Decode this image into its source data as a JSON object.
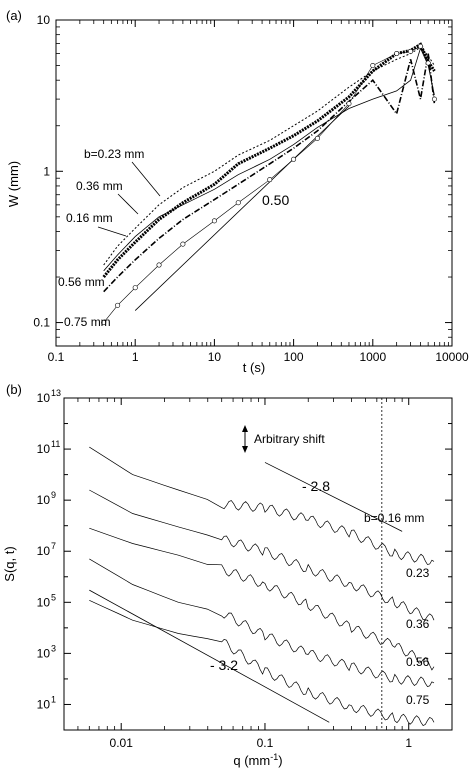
{
  "chart_data": [
    {
      "type": "line",
      "panel": "(a)",
      "xlabel": "t (s)",
      "ylabel": "W (mm)",
      "xscale": "log",
      "yscale": "log",
      "xlim": [
        0.1,
        10000
      ],
      "ylim": [
        0.07,
        10
      ],
      "xticks": [
        "0.1",
        "1",
        "10",
        "100",
        "1000",
        "10000"
      ],
      "yticks": [
        "0.1",
        "1",
        "10"
      ],
      "slope_label": "0.50",
      "series": [
        {
          "name": "b=0.23 mm",
          "style": "dotted",
          "x": [
            0.4,
            0.6,
            1,
            2,
            4,
            10,
            20,
            50,
            100,
            200,
            500,
            1000,
            2000,
            3000,
            4000,
            5000,
            6000
          ],
          "y": [
            0.24,
            0.32,
            0.42,
            0.6,
            0.78,
            1.0,
            1.28,
            1.6,
            2.0,
            2.5,
            3.6,
            4.6,
            5.5,
            6.0,
            6.6,
            5.8,
            5.0
          ]
        },
        {
          "name": "0.36 mm",
          "style": "bold-dots",
          "x": [
            0.4,
            0.6,
            1,
            2,
            4,
            10,
            20,
            50,
            100,
            200,
            500,
            1000,
            2000,
            3000,
            4000,
            5000,
            6000
          ],
          "y": [
            0.2,
            0.26,
            0.34,
            0.48,
            0.62,
            0.82,
            1.12,
            1.42,
            1.72,
            2.15,
            3.1,
            4.6,
            6.0,
            6.3,
            6.9,
            5.3,
            4.6
          ]
        },
        {
          "name": "0.16 mm",
          "style": "solid",
          "x": [
            0.4,
            0.6,
            1,
            2,
            4,
            10,
            20,
            50,
            100,
            200,
            500,
            1000,
            2000,
            3000,
            4000,
            5000,
            6000
          ],
          "y": [
            0.22,
            0.28,
            0.37,
            0.5,
            0.6,
            0.76,
            0.95,
            1.2,
            1.5,
            1.95,
            2.6,
            3.0,
            3.4,
            4.0,
            6.5,
            5.0,
            3.2
          ]
        },
        {
          "name": "0.56 mm",
          "style": "dash-dot",
          "x": [
            0.4,
            0.6,
            1,
            2,
            4,
            10,
            20,
            50,
            100,
            200,
            500,
            1000,
            2000,
            3000,
            4000,
            5000,
            6000
          ],
          "y": [
            0.16,
            0.2,
            0.26,
            0.36,
            0.48,
            0.65,
            0.82,
            1.12,
            1.42,
            1.85,
            2.9,
            4.0,
            2.4,
            5.5,
            3.0,
            6.0,
            2.8
          ]
        },
        {
          "name": "0.75 mm",
          "style": "open-circles",
          "x": [
            0.4,
            0.6,
            1,
            2,
            4,
            10,
            20,
            50,
            100,
            200,
            500,
            1000,
            2000,
            3000,
            4000,
            5000,
            6000
          ],
          "y": [
            0.1,
            0.13,
            0.17,
            0.24,
            0.33,
            0.47,
            0.62,
            0.88,
            1.2,
            1.65,
            2.8,
            5.0,
            6.0,
            6.2,
            6.7,
            5.2,
            3.0
          ]
        }
      ],
      "reference_line": {
        "x": [
          1,
          500
        ],
        "y": [
          0.12,
          2.7
        ]
      }
    },
    {
      "type": "line",
      "panel": "(b)",
      "xlabel": "q (mm",
      "xlabel_sup": "-1",
      "xlabel_close": ")",
      "ylabel": "S(q, t)",
      "xscale": "log",
      "yscale": "log",
      "xlim": [
        0.004,
        2
      ],
      "ylim": [
        1,
        10000000000000
      ],
      "xticks": [
        "0.01",
        "0.1",
        "1"
      ],
      "yticks": [
        "10",
        "10",
        "10",
        "10",
        "10",
        "10",
        "10"
      ],
      "ytick_exponents": [
        "1",
        "3",
        "5",
        "7",
        "9",
        "11",
        "13"
      ],
      "shift_label": "Arbitrary shift",
      "slope_top": "- 2.8",
      "slope_bottom": "- 3.2",
      "vline_q": 0.65,
      "series": [
        {
          "name": "b=0.16 mm",
          "x": [
            0.006,
            0.012,
            0.025,
            0.05,
            0.1,
            0.2,
            0.4,
            0.8,
            1.5
          ],
          "y": [
            120000000000,
            10000000000,
            2500000000,
            700000000,
            500000000,
            180000000,
            50000000,
            8000000,
            4000000
          ]
        },
        {
          "name": "0.23",
          "x": [
            0.006,
            0.012,
            0.025,
            0.05,
            0.1,
            0.2,
            0.4,
            0.8,
            1.5
          ],
          "y": [
            2500000000,
            300000000,
            90000000,
            30000000,
            10000000,
            2000000,
            500000,
            100000,
            20000
          ]
        },
        {
          "name": "0.36",
          "x": [
            0.006,
            0.012,
            0.025,
            0.05,
            0.1,
            0.2,
            0.4,
            0.8,
            1.5
          ],
          "y": [
            80000000,
            20000000,
            7000000,
            2000000,
            500000,
            80000,
            10000,
            2000,
            300
          ]
        },
        {
          "name": "0.56",
          "x": [
            0.006,
            0.012,
            0.025,
            0.05,
            0.1,
            0.2,
            0.4,
            0.8,
            1.5
          ],
          "y": [
            5000000,
            500000,
            100000,
            40000,
            5000,
            1000,
            300,
            100,
            70
          ]
        },
        {
          "name": "0.75",
          "x": [
            0.006,
            0.012,
            0.025,
            0.05,
            0.1,
            0.2,
            0.4,
            0.8,
            1.5
          ],
          "y": [
            120000,
            20000,
            6000,
            3000,
            200,
            30,
            8,
            3,
            2
          ]
        }
      ],
      "reference_lines": [
        {
          "x": [
            0.1,
            0.9
          ],
          "y": [
            30000000000,
            60000000
          ]
        },
        {
          "x": [
            0.006,
            0.28
          ],
          "y": [
            300000,
            2
          ]
        }
      ]
    }
  ],
  "labels": {
    "a_series_labels": [
      "b=0.23 mm",
      "0.36 mm",
      "0.16 mm",
      "0.56 mm",
      "0.75 mm"
    ],
    "b_series_labels": [
      "b=0.16 mm",
      "0.23",
      "0.36",
      "0.56",
      "0.75"
    ]
  }
}
